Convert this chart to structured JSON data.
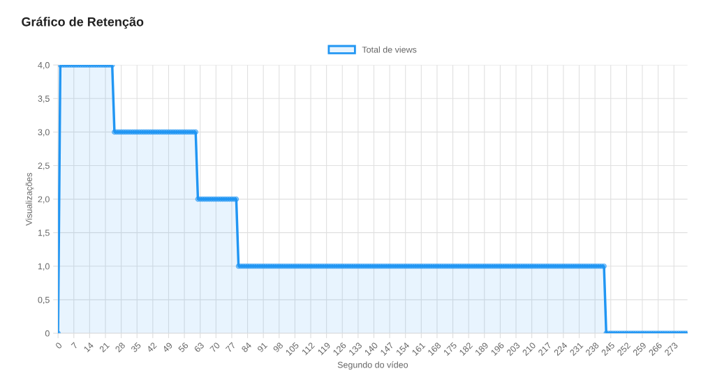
{
  "chart_data": {
    "type": "area",
    "title": "Gráfico de Retenção",
    "xlabel": "Segundo do vídeo",
    "ylabel": "Visualizações",
    "x": [
      0,
      1,
      2,
      3,
      4,
      5,
      6,
      7,
      8,
      9,
      10,
      11,
      12,
      13,
      14,
      15,
      16,
      17,
      18,
      19,
      20,
      21,
      22,
      23,
      24,
      25,
      26,
      27,
      28,
      29,
      30,
      31,
      32,
      33,
      34,
      35,
      36,
      37,
      38,
      39,
      40,
      41,
      42,
      43,
      44,
      45,
      46,
      47,
      48,
      49,
      50,
      51,
      52,
      53,
      54,
      55,
      56,
      57,
      58,
      59,
      60,
      61,
      62,
      63,
      64,
      65,
      66,
      67,
      68,
      69,
      70,
      71,
      72,
      73,
      74,
      75,
      76,
      77,
      78,
      79,
      80,
      81,
      82,
      83,
      84,
      85,
      86,
      87,
      88,
      89,
      90,
      91,
      92,
      93,
      94,
      95,
      96,
      97,
      98,
      99,
      100,
      101,
      102,
      103,
      104,
      105,
      106,
      107,
      108,
      109,
      110,
      111,
      112,
      113,
      114,
      115,
      116,
      117,
      118,
      119,
      120,
      121,
      122,
      123,
      124,
      125,
      126,
      127,
      128,
      129,
      130,
      131,
      132,
      133,
      134,
      135,
      136,
      137,
      138,
      139,
      140,
      141,
      142,
      143,
      144,
      145,
      146,
      147,
      148,
      149,
      150,
      151,
      152,
      153,
      154,
      155,
      156,
      157,
      158,
      159,
      160,
      161,
      162,
      163,
      164,
      165,
      166,
      167,
      168,
      169,
      170,
      171,
      172,
      173,
      174,
      175,
      176,
      177,
      178,
      179,
      180,
      181,
      182,
      183,
      184,
      185,
      186,
      187,
      188,
      189,
      190,
      191,
      192,
      193,
      194,
      195,
      196,
      197,
      198,
      199,
      200,
      201,
      202,
      203,
      204,
      205,
      206,
      207,
      208,
      209,
      210,
      211,
      212,
      213,
      214,
      215,
      216,
      217,
      218,
      219,
      220,
      221,
      222,
      223,
      224,
      225,
      226,
      227,
      228,
      229,
      230,
      231,
      232,
      233,
      234,
      235,
      236,
      237,
      238,
      239,
      240,
      241,
      242,
      243,
      244,
      245,
      246,
      247,
      248,
      249,
      250,
      251,
      252,
      253,
      254,
      255,
      256,
      257,
      258,
      259,
      260,
      261,
      262,
      263,
      264,
      265,
      266,
      267,
      268,
      269,
      270,
      271,
      272,
      273,
      274,
      275,
      276,
      277,
      278,
      279
    ],
    "series": [
      {
        "name": "Total de views",
        "color": "#2196f3",
        "values": [
          0,
          4,
          4,
          4,
          4,
          4,
          4,
          4,
          4,
          4,
          4,
          4,
          4,
          4,
          4,
          4,
          4,
          4,
          4,
          4,
          4,
          4,
          4,
          4,
          4,
          3,
          3,
          3,
          3,
          3,
          3,
          3,
          3,
          3,
          3,
          3,
          3,
          3,
          3,
          3,
          3,
          3,
          3,
          3,
          3,
          3,
          3,
          3,
          3,
          3,
          3,
          3,
          3,
          3,
          3,
          3,
          3,
          3,
          3,
          3,
          3,
          3,
          2,
          2,
          2,
          2,
          2,
          2,
          2,
          2,
          2,
          2,
          2,
          2,
          2,
          2,
          2,
          2,
          2,
          2,
          1,
          1,
          1,
          1,
          1,
          1,
          1,
          1,
          1,
          1,
          1,
          1,
          1,
          1,
          1,
          1,
          1,
          1,
          1,
          1,
          1,
          1,
          1,
          1,
          1,
          1,
          1,
          1,
          1,
          1,
          1,
          1,
          1,
          1,
          1,
          1,
          1,
          1,
          1,
          1,
          1,
          1,
          1,
          1,
          1,
          1,
          1,
          1,
          1,
          1,
          1,
          1,
          1,
          1,
          1,
          1,
          1,
          1,
          1,
          1,
          1,
          1,
          1,
          1,
          1,
          1,
          1,
          1,
          1,
          1,
          1,
          1,
          1,
          1,
          1,
          1,
          1,
          1,
          1,
          1,
          1,
          1,
          1,
          1,
          1,
          1,
          1,
          1,
          1,
          1,
          1,
          1,
          1,
          1,
          1,
          1,
          1,
          1,
          1,
          1,
          1,
          1,
          1,
          1,
          1,
          1,
          1,
          1,
          1,
          1,
          1,
          1,
          1,
          1,
          1,
          1,
          1,
          1,
          1,
          1,
          1,
          1,
          1,
          1,
          1,
          1,
          1,
          1,
          1,
          1,
          1,
          1,
          1,
          1,
          1,
          1,
          1,
          1,
          1,
          1,
          1,
          1,
          1,
          1,
          1,
          1,
          1,
          1,
          1,
          1,
          1,
          1,
          1,
          1,
          1,
          1,
          1,
          1,
          1,
          1,
          1,
          1,
          1,
          0,
          0,
          0,
          0,
          0,
          0,
          0,
          0,
          0,
          0,
          0,
          0,
          0,
          0,
          0,
          0,
          0,
          0,
          0,
          0,
          0,
          0,
          0,
          0,
          0,
          0,
          0,
          0,
          0,
          0,
          0,
          0,
          0,
          0,
          0,
          0,
          0
        ]
      }
    ],
    "xlim": [
      0,
      279
    ],
    "xticks": [
      0,
      7,
      14,
      21,
      28,
      35,
      42,
      49,
      56,
      63,
      70,
      77,
      84,
      91,
      98,
      105,
      112,
      119,
      126,
      133,
      140,
      147,
      154,
      161,
      168,
      175,
      182,
      189,
      196,
      203,
      210,
      217,
      224,
      231,
      238,
      245,
      252,
      259,
      266,
      273
    ],
    "ylim": [
      0,
      4
    ],
    "yticks": [
      {
        "value": 0,
        "label": "0"
      },
      {
        "value": 0.5,
        "label": "0,5"
      },
      {
        "value": 1,
        "label": "1,0"
      },
      {
        "value": 1.5,
        "label": "1,5"
      },
      {
        "value": 2,
        "label": "2,0"
      },
      {
        "value": 2.5,
        "label": "2,5"
      },
      {
        "value": 3,
        "label": "3,0"
      },
      {
        "value": 3.5,
        "label": "3,5"
      },
      {
        "value": 4,
        "label": "4,0"
      }
    ],
    "grid": true,
    "legend": "top",
    "marker": "circle",
    "line_style": "solid"
  }
}
